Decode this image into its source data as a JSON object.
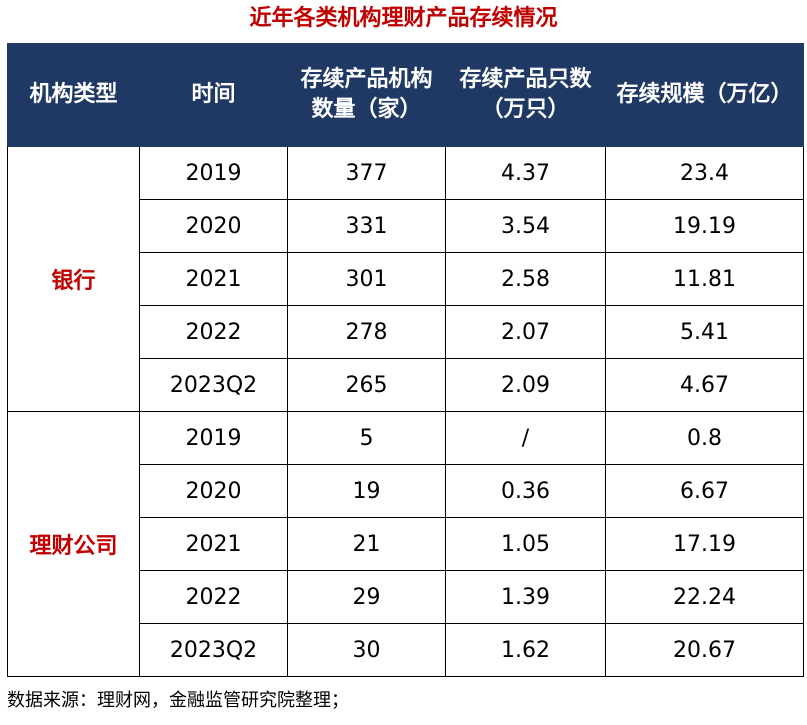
{
  "title": "近年各类机构理财产品存续情况",
  "headers": {
    "type": "机构类型",
    "time": "时间",
    "count": "存续产品机构数量（家）",
    "products": "存续产品只数（万只）",
    "scale": "存续规模（万亿）"
  },
  "groups": [
    {
      "name": "银行",
      "rows": [
        {
          "time": "2019",
          "count": "377",
          "products": "4.37",
          "scale": "23.4"
        },
        {
          "time": "2020",
          "count": "331",
          "products": "3.54",
          "scale": "19.19"
        },
        {
          "time": "2021",
          "count": "301",
          "products": "2.58",
          "scale": "11.81"
        },
        {
          "time": "2022",
          "count": "278",
          "products": "2.07",
          "scale": "5.41"
        },
        {
          "time": "2023Q2",
          "count": "265",
          "products": "2.09",
          "scale": "4.67"
        }
      ]
    },
    {
      "name": "理财公司",
      "rows": [
        {
          "time": "2019",
          "count": "5",
          "products": "/",
          "scale": "0.8"
        },
        {
          "time": "2020",
          "count": "19",
          "products": "0.36",
          "scale": "6.67"
        },
        {
          "time": "2021",
          "count": "21",
          "products": "1.05",
          "scale": "17.19"
        },
        {
          "time": "2022",
          "count": "29",
          "products": "1.39",
          "scale": "22.24"
        },
        {
          "time": "2023Q2",
          "count": "30",
          "products": "1.62",
          "scale": "20.67"
        }
      ]
    }
  ],
  "source": "数据来源：理财网，金融监管研究院整理；",
  "colors": {
    "header_bg": "#1f3864",
    "accent": "#c00000"
  }
}
